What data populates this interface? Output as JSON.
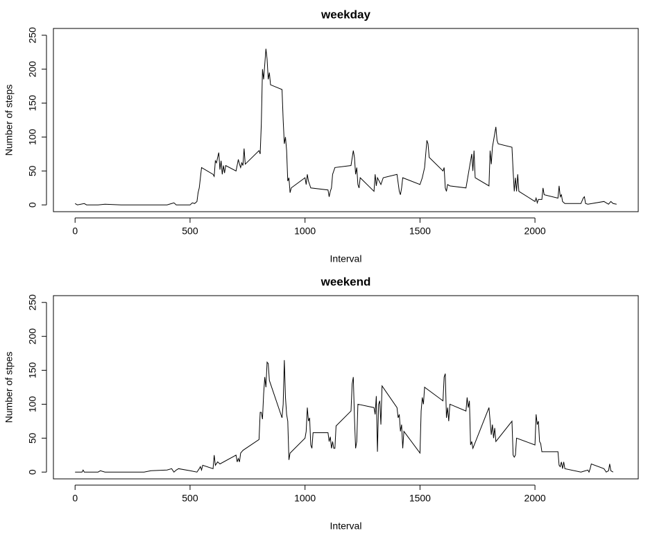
{
  "chart_data": [
    {
      "type": "line",
      "title": "weekday",
      "xlabel": "Interval",
      "ylabel": "Number of steps",
      "color": "#000000",
      "x": [
        0,
        10,
        25,
        40,
        50,
        100,
        130,
        200,
        230,
        300,
        400,
        420,
        430,
        440,
        500,
        510,
        520,
        530,
        535,
        540,
        550,
        600,
        605,
        610,
        615,
        620,
        625,
        630,
        635,
        640,
        645,
        650,
        655,
        700,
        710,
        715,
        720,
        725,
        730,
        735,
        740,
        800,
        805,
        810,
        815,
        820,
        830,
        835,
        840,
        845,
        850,
        900,
        905,
        910,
        915,
        920,
        925,
        930,
        935,
        940,
        1000,
        1005,
        1010,
        1015,
        1020,
        1025,
        1100,
        1105,
        1110,
        1115,
        1120,
        1130,
        1200,
        1210,
        1215,
        1220,
        1225,
        1230,
        1235,
        1240,
        1300,
        1305,
        1310,
        1315,
        1330,
        1340,
        1400,
        1410,
        1415,
        1420,
        1425,
        1500,
        1510,
        1520,
        1525,
        1530,
        1535,
        1540,
        1600,
        1605,
        1610,
        1615,
        1620,
        1630,
        1700,
        1710,
        1720,
        1725,
        1730,
        1735,
        1740,
        1800,
        1805,
        1810,
        1815,
        1830,
        1835,
        1840,
        1900,
        1905,
        1910,
        1915,
        1920,
        1925,
        1930,
        2000,
        2005,
        2010,
        2015,
        2030,
        2035,
        2040,
        2100,
        2105,
        2110,
        2115,
        2120,
        2130,
        2200,
        2210,
        2215,
        2220,
        2230,
        2300,
        2310,
        2320,
        2330,
        2340,
        2355
      ],
      "values": [
        2,
        0,
        1,
        2,
        0,
        0,
        1,
        0,
        0,
        0,
        0,
        2,
        3,
        0,
        0,
        3,
        2,
        5,
        18,
        25,
        55,
        45,
        42,
        65,
        62,
        70,
        77,
        52,
        65,
        45,
        58,
        47,
        58,
        50,
        67,
        60,
        55,
        62,
        58,
        83,
        60,
        80,
        75,
        120,
        200,
        185,
        230,
        215,
        185,
        195,
        177,
        170,
        125,
        90,
        100,
        80,
        35,
        40,
        18,
        25,
        40,
        30,
        45,
        35,
        30,
        25,
        22,
        12,
        20,
        25,
        45,
        55,
        58,
        80,
        70,
        45,
        55,
        30,
        25,
        40,
        20,
        45,
        28,
        40,
        30,
        40,
        45,
        20,
        15,
        25,
        40,
        30,
        40,
        55,
        75,
        95,
        90,
        70,
        50,
        55,
        25,
        20,
        30,
        28,
        25,
        45,
        65,
        75,
        50,
        80,
        40,
        28,
        80,
        60,
        85,
        115,
        95,
        90,
        85,
        50,
        20,
        40,
        20,
        45,
        20,
        5,
        10,
        3,
        8,
        8,
        25,
        15,
        10,
        28,
        12,
        15,
        5,
        2,
        2,
        10,
        12,
        2,
        1,
        5,
        3,
        1,
        5,
        2,
        1
      ],
      "xlim": [
        -94.2,
        2449.2
      ],
      "ylim": [
        -10,
        260
      ],
      "xticks": [
        0,
        500,
        1000,
        1500,
        2000
      ],
      "yticks": [
        0,
        50,
        100,
        150,
        200,
        250
      ]
    },
    {
      "type": "line",
      "title": "weekend",
      "xlabel": "Interval",
      "ylabel": "Number of stpes",
      "color": "#000000",
      "x": [
        0,
        30,
        35,
        40,
        100,
        110,
        130,
        200,
        300,
        330,
        400,
        420,
        430,
        440,
        450,
        500,
        530,
        540,
        545,
        550,
        555,
        600,
        605,
        610,
        620,
        630,
        700,
        705,
        710,
        715,
        720,
        730,
        800,
        805,
        810,
        815,
        820,
        825,
        830,
        835,
        840,
        845,
        900,
        905,
        910,
        915,
        920,
        925,
        930,
        935,
        1000,
        1005,
        1010,
        1015,
        1020,
        1025,
        1030,
        1035,
        1100,
        1105,
        1110,
        1115,
        1120,
        1125,
        1130,
        1135,
        1200,
        1205,
        1210,
        1215,
        1220,
        1225,
        1230,
        1300,
        1305,
        1310,
        1315,
        1320,
        1325,
        1330,
        1335,
        1400,
        1405,
        1410,
        1415,
        1420,
        1425,
        1430,
        1500,
        1505,
        1510,
        1515,
        1520,
        1600,
        1605,
        1610,
        1615,
        1620,
        1625,
        1630,
        1700,
        1705,
        1710,
        1715,
        1720,
        1725,
        1730,
        1800,
        1805,
        1810,
        1815,
        1820,
        1825,
        1830,
        1900,
        1905,
        1910,
        1915,
        1920,
        2000,
        2005,
        2010,
        2015,
        2020,
        2025,
        2030,
        2100,
        2105,
        2110,
        2115,
        2120,
        2125,
        2130,
        2200,
        2210,
        2230,
        2235,
        2240,
        2245,
        2300,
        2310,
        2320,
        2325,
        2330,
        2340
      ],
      "values": [
        0,
        0,
        3,
        0,
        0,
        2,
        0,
        0,
        0,
        2,
        3,
        5,
        0,
        3,
        5,
        2,
        0,
        5,
        8,
        3,
        10,
        5,
        25,
        10,
        15,
        12,
        25,
        15,
        20,
        15,
        28,
        32,
        48,
        88,
        88,
        78,
        115,
        140,
        125,
        162,
        160,
        135,
        80,
        100,
        165,
        110,
        85,
        75,
        18,
        28,
        50,
        60,
        95,
        75,
        80,
        40,
        35,
        58,
        58,
        45,
        52,
        35,
        45,
        35,
        35,
        68,
        90,
        130,
        140,
        80,
        35,
        45,
        100,
        95,
        85,
        112,
        30,
        100,
        105,
        70,
        127,
        95,
        80,
        85,
        60,
        70,
        35,
        60,
        28,
        90,
        110,
        100,
        125,
        105,
        140,
        145,
        80,
        95,
        75,
        100,
        90,
        110,
        95,
        105,
        40,
        45,
        35,
        95,
        75,
        55,
        70,
        50,
        65,
        45,
        75,
        25,
        22,
        25,
        50,
        40,
        85,
        70,
        75,
        45,
        42,
        30,
        30,
        10,
        8,
        15,
        5,
        15,
        5,
        0,
        1,
        3,
        0,
        5,
        12,
        5,
        0,
        2,
        12,
        2,
        0
      ],
      "xlim": [
        -94.2,
        2449.2
      ],
      "ylim": [
        -10,
        260
      ],
      "xticks": [
        0,
        500,
        1000,
        1500,
        2000
      ],
      "yticks": [
        0,
        50,
        100,
        150,
        200,
        250
      ]
    }
  ]
}
